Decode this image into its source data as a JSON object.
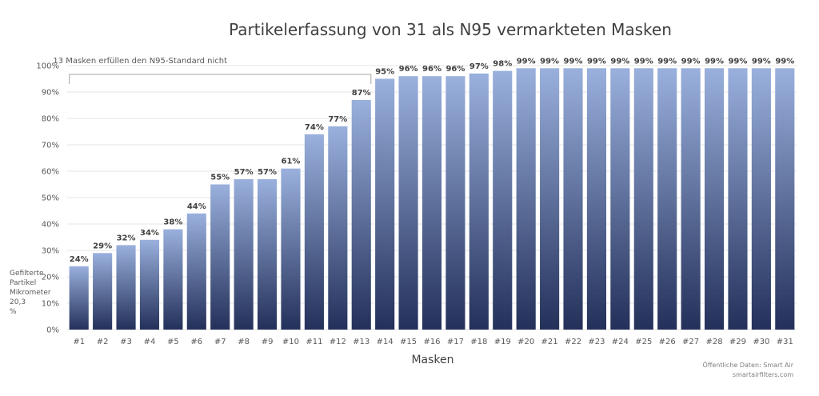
{
  "chart_data": {
    "type": "bar",
    "title": "Partikelerfassung von 31 als N95 vermarkteten Masken",
    "xlabel": "Masken",
    "ylabel_lines": [
      "Gefilterte",
      "Partikel",
      "Mikrometer",
      "20,3",
      "%"
    ],
    "ylim": [
      0,
      100
    ],
    "yticks": [
      "0%",
      "10%",
      "20%",
      "30%",
      "40%",
      "50%",
      "60%",
      "70%",
      "80%",
      "90%",
      "100%"
    ],
    "grid": true,
    "categories": [
      "#1",
      "#2",
      "#3",
      "#4",
      "#5",
      "#6",
      "#7",
      "#8",
      "#9",
      "#10",
      "#11",
      "#12",
      "#13",
      "#14",
      "#15",
      "#16",
      "#17",
      "#18",
      "#19",
      "#20",
      "#21",
      "#22",
      "#23",
      "#24",
      "#25",
      "#26",
      "#27",
      "#28",
      "#29",
      "#30",
      "#31"
    ],
    "values": [
      24,
      29,
      32,
      34,
      38,
      44,
      55,
      57,
      57,
      61,
      74,
      77,
      87,
      95,
      96,
      96,
      96,
      97,
      98,
      99,
      99,
      99,
      99,
      99,
      99,
      99,
      99,
      99,
      99,
      99,
      99
    ],
    "data_labels": [
      "24%",
      "29%",
      "32%",
      "34%",
      "38%",
      "44%",
      "55%",
      "57%",
      "57%",
      "61%",
      "74%",
      "77%",
      "87%",
      "95%",
      "96%",
      "96%",
      "96%",
      "97%",
      "98%",
      "99%",
      "99%",
      "99%",
      "99%",
      "99%",
      "99%",
      "99%",
      "99%",
      "99%",
      "99%",
      "99%",
      "99%"
    ],
    "annotation": {
      "text": "13 Masken erfüllen den N95-Standard nicht",
      "from_category": "#1",
      "to_category": "#13"
    },
    "source_lines": [
      "Öffentliche Daten: Smart Air",
      "smartairfilters.com"
    ],
    "colors": {
      "bar_top": "#9ab0dd",
      "bar_bottom": "#23305a",
      "grid": "#e4e4e4"
    }
  }
}
